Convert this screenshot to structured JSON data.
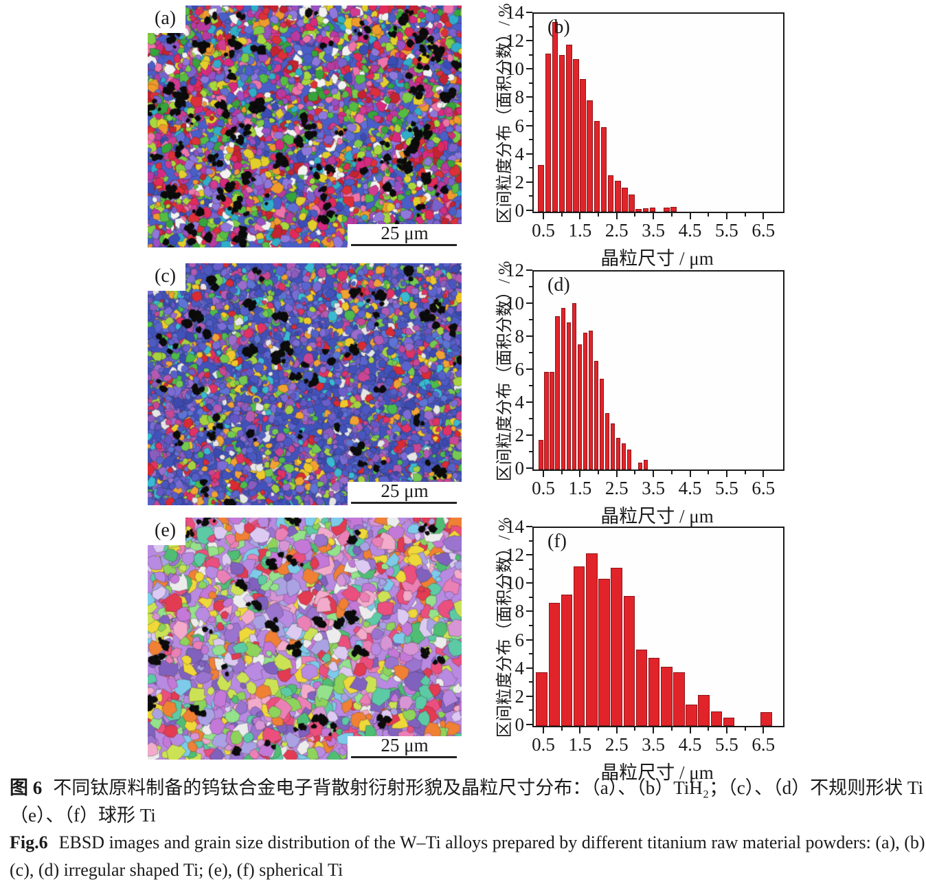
{
  "colors": {
    "bar_fill": "#e1242a",
    "bar_edge": "#8c1418",
    "axis": "#1a1a1a",
    "black_patch": "#0a0a0a",
    "panel_bg": "#ffffff"
  },
  "ebsd_panels": [
    {
      "label": "(a)",
      "scale_bar": "25 μm",
      "seed": 7,
      "grain_min": 3.5,
      "grain_max": 9.5,
      "grain_count": 3400,
      "black_patches": 85,
      "palette": [
        "#4a5ec8",
        "#3b4db4",
        "#5f6fd4",
        "#7a62cc",
        "#9a50c4",
        "#b83aa0",
        "#d62a80",
        "#e22a5a",
        "#de3038",
        "#c32430",
        "#36a43c",
        "#55bd42",
        "#7ecb46",
        "#a8d83c",
        "#e3cf2a",
        "#ef9a2c",
        "#2fadc9",
        "#8f78dc",
        "#ee74aa",
        "#d23b92",
        "#f2f2f2"
      ]
    },
    {
      "label": "(c)",
      "scale_bar": "25 μm",
      "seed": 13,
      "grain_min": 3.2,
      "grain_max": 8.5,
      "grain_count": 3600,
      "black_patches": 50,
      "palette": [
        "#4152ba",
        "#3c49ae",
        "#4d5cc4",
        "#5a64ce",
        "#4a56c0",
        "#6a5ecb",
        "#7a6cd4",
        "#5d74d6",
        "#8a5cbe",
        "#9a6ccc",
        "#b25ab4",
        "#c84694",
        "#e03264",
        "#da2a34",
        "#4cba4c",
        "#73c952",
        "#a5d23e",
        "#f0a232",
        "#efc92a",
        "#39bad2",
        "#e6e6e6",
        "#4b58c2",
        "#5560c8",
        "#6456c6"
      ]
    },
    {
      "label": "(e)",
      "scale_bar": "25 μm",
      "seed": 21,
      "grain_min": 5,
      "grain_max": 15,
      "grain_count": 1500,
      "black_patches": 32,
      "palette": [
        "#b98ae2",
        "#9a74cf",
        "#8062be",
        "#d795d5",
        "#ea80b5",
        "#ea4f7e",
        "#e23b52",
        "#f08034",
        "#eed83a",
        "#cce255",
        "#8ed35c",
        "#50bd74",
        "#5ccaa5",
        "#7ecae9",
        "#aaa2e3",
        "#f2abca",
        "#dccaf2",
        "#94e28c",
        "#ececec",
        "#c478d8"
      ]
    }
  ],
  "chart_data": [
    {
      "id": "b",
      "type": "bar",
      "panel_label": "(b)",
      "title": "",
      "xlabel": "晶粒尺寸 / μm",
      "ylabel": "区间粒度分布（面积分数）/ %",
      "xlim": [
        0.2,
        7.0
      ],
      "ylim": [
        0,
        14
      ],
      "yticks": [
        0,
        2,
        4,
        6,
        8,
        10,
        12,
        14
      ],
      "xticks": [
        0.5,
        1.5,
        2.5,
        3.5,
        4.5,
        5.5,
        6.5
      ],
      "y_minor_ticks": [
        1,
        3,
        5,
        7,
        9,
        11,
        13
      ],
      "x_minor_ticks": [
        1,
        2,
        3,
        4,
        5,
        6
      ],
      "bin_width": 0.19,
      "x": [
        0.4,
        0.59,
        0.78,
        0.97,
        1.16,
        1.35,
        1.54,
        1.73,
        1.92,
        2.11,
        2.3,
        2.49,
        2.68,
        2.87,
        3.06,
        3.25,
        3.44,
        3.63,
        3.82,
        4.01
      ],
      "values": [
        3.3,
        11.2,
        13.4,
        11.1,
        11.8,
        10.8,
        9.4,
        7.9,
        6.4,
        6.0,
        2.6,
        2.2,
        1.7,
        1.2,
        0.2,
        0.25,
        0.3,
        0,
        0.3,
        0.35
      ],
      "grid": false,
      "legend": "none"
    },
    {
      "id": "d",
      "type": "bar",
      "panel_label": "(d)",
      "title": "",
      "xlabel": "晶粒尺寸 / μm",
      "ylabel": "区间粒度分布（面积分数）/ %",
      "xlim": [
        0.2,
        7.0
      ],
      "ylim": [
        0,
        12
      ],
      "yticks": [
        0,
        2,
        4,
        6,
        8,
        10,
        12
      ],
      "xticks": [
        0.5,
        1.5,
        2.5,
        3.5,
        4.5,
        5.5,
        6.5
      ],
      "y_minor_ticks": [
        1,
        3,
        5,
        7,
        9,
        11
      ],
      "x_minor_ticks": [
        1,
        2,
        3,
        4,
        5,
        6
      ],
      "bin_width": 0.15,
      "x": [
        0.4,
        0.55,
        0.7,
        0.85,
        1.0,
        1.15,
        1.3,
        1.45,
        1.6,
        1.75,
        1.9,
        2.05,
        2.2,
        2.35,
        2.5,
        2.65,
        2.8,
        2.95,
        3.1,
        3.25
      ],
      "values": [
        1.8,
        5.9,
        5.9,
        9.3,
        9.8,
        8.9,
        10.1,
        7.6,
        8.3,
        8.4,
        6.6,
        5.5,
        3.4,
        2.8,
        1.9,
        1.6,
        1.2,
        0,
        0.4,
        0.6
      ],
      "grid": false,
      "legend": "none"
    },
    {
      "id": "f",
      "type": "bar",
      "panel_label": "(f)",
      "title": "",
      "xlabel": "晶粒尺寸 / μm",
      "ylabel": "区间粒度分布（面积分数）/ %",
      "xlim": [
        0.2,
        7.0
      ],
      "ylim": [
        0,
        14
      ],
      "yticks": [
        0,
        2,
        4,
        6,
        8,
        10,
        12,
        14
      ],
      "xticks": [
        0.5,
        1.5,
        2.5,
        3.5,
        4.5,
        5.5,
        6.5
      ],
      "y_minor_ticks": [
        1,
        3,
        5,
        7,
        9,
        11,
        13
      ],
      "x_minor_ticks": [
        1,
        2,
        3,
        4,
        5,
        6
      ],
      "bin_width": 0.34,
      "x": [
        0.42,
        0.76,
        1.1,
        1.44,
        1.78,
        2.12,
        2.46,
        2.8,
        3.14,
        3.48,
        3.82,
        4.16,
        4.5,
        4.84,
        5.18,
        5.52,
        5.86,
        6.2,
        6.54
      ],
      "values": [
        3.8,
        8.7,
        9.3,
        11.3,
        12.2,
        10.4,
        11.2,
        9.2,
        5.4,
        4.8,
        4.2,
        3.8,
        1.5,
        2.2,
        1.0,
        0.6,
        0,
        0,
        0.95
      ],
      "grid": false,
      "legend": "none"
    }
  ],
  "caption": {
    "zh_label": "图 6",
    "zh_line1": "不同钛原料制备的钨钛合金电子背散射衍射形貌及晶粒尺寸分布：（a）、（b）TiH₂；（c）、（d）不规则形状 Ti；",
    "zh_line2": "（e）、（f）球形 Ti",
    "en_label": "Fig.6",
    "en_line1": "EBSD images and grain size distribution of the W–Ti alloys prepared by different titanium raw material powders: (a), (b) TiH₂;",
    "en_line2": "(c), (d) irregular shaped Ti; (e), (f) spherical Ti"
  }
}
